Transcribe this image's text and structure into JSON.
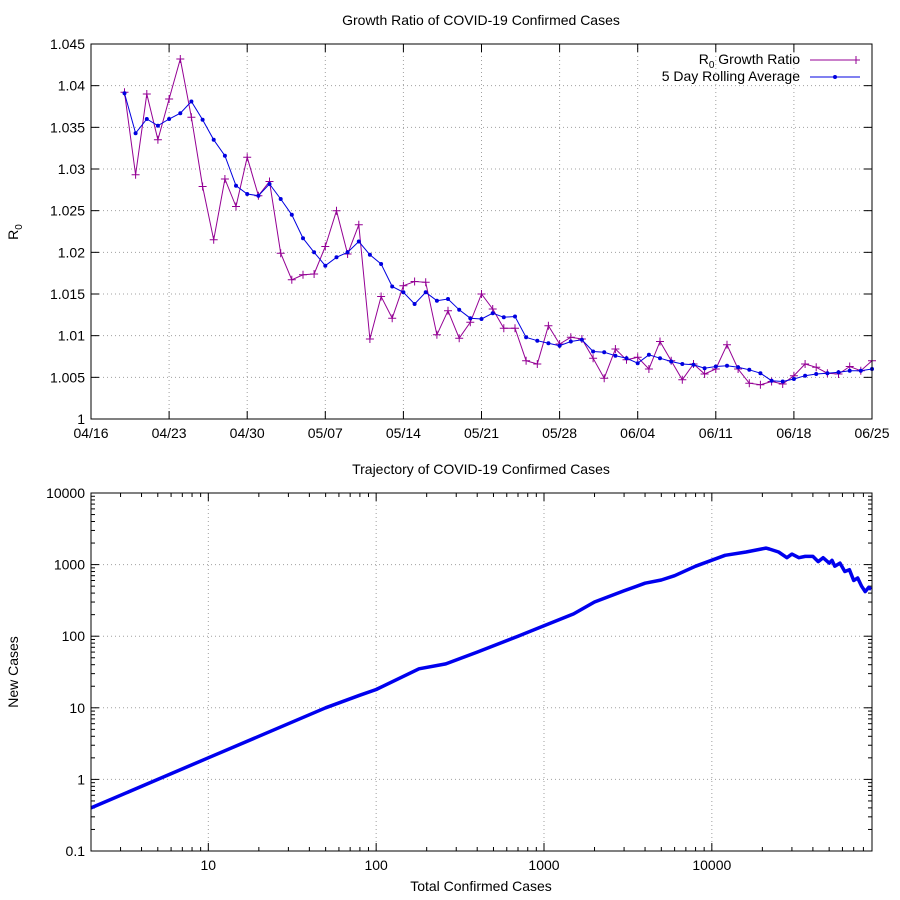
{
  "colors": {
    "ratio": "#940094",
    "average": "#0000e0",
    "trajectory": "#0000ee",
    "grid": "#a0a0a0"
  },
  "chart_data": [
    {
      "type": "line",
      "title": "Growth Ratio of COVID-19 Confirmed Cases",
      "xlabel": "",
      "ylabel_main": "R",
      "ylabel_sub": "0",
      "xlim": [
        "2020-04-16",
        "2020-06-25"
      ],
      "ylim": [
        1.0,
        1.045
      ],
      "grid": true,
      "legend": "top-right",
      "x_tick_labels": [
        "04/16",
        "04/23",
        "04/30",
        "05/07",
        "05/14",
        "05/21",
        "05/28",
        "06/04",
        "06/11",
        "06/18",
        "06/25"
      ],
      "y_tick_labels": [
        "1",
        "1.005",
        "1.01",
        "1.015",
        "1.02",
        "1.025",
        "1.03",
        "1.035",
        "1.04",
        "1.045"
      ],
      "start_date": "2020-04-19",
      "series": [
        {
          "name_main": "R",
          "name_sub": "0",
          "name_rest": " Growth Ratio",
          "marker": "plus",
          "values": [
            1.0392,
            1.0293,
            1.039,
            1.0335,
            1.0384,
            1.0432,
            1.0362,
            1.0279,
            1.0215,
            1.0288,
            1.0255,
            1.0314,
            1.0268,
            1.0285,
            1.0199,
            1.0167,
            1.0173,
            1.0174,
            1.0207,
            1.025,
            1.0198,
            1.0233,
            1.0096,
            1.0147,
            1.0121,
            1.016,
            1.0165,
            1.0164,
            1.0101,
            1.013,
            1.0097,
            1.0116,
            1.015,
            1.0132,
            1.0109,
            1.0109,
            1.007,
            1.0066,
            1.0112,
            1.009,
            1.0098,
            1.0096,
            1.0073,
            1.0049,
            1.0084,
            1.0071,
            1.0074,
            1.006,
            1.0093,
            1.007,
            1.0047,
            1.0066,
            1.0054,
            1.006,
            1.0089,
            1.006,
            1.0043,
            1.0041,
            1.0045,
            1.0042,
            1.0052,
            1.0066,
            1.0062,
            1.0055,
            1.0054,
            1.0063,
            1.0058,
            1.007
          ]
        },
        {
          "name": "5 Day Rolling Average",
          "marker": "dot",
          "values": [
            1.0391,
            1.0343,
            1.036,
            1.0352,
            1.036,
            1.0367,
            1.0381,
            1.0359,
            1.0335,
            1.0316,
            1.028,
            1.027,
            1.0268,
            1.0282,
            1.0264,
            1.0245,
            1.0217,
            1.02,
            1.0184,
            1.0194,
            1.02,
            1.0213,
            1.0197,
            1.0186,
            1.0159,
            1.0152,
            1.0138,
            1.0152,
            1.0142,
            1.0144,
            1.0131,
            1.0121,
            1.012,
            1.0127,
            1.0122,
            1.0123,
            1.0098,
            1.0094,
            1.0091,
            1.0088,
            1.0093,
            1.0095,
            1.0081,
            1.008,
            1.0076,
            1.0073,
            1.0067,
            1.0077,
            1.0073,
            1.0069,
            1.0066,
            1.0065,
            1.0061,
            1.0063,
            1.0064,
            1.0062,
            1.0059,
            1.0055,
            1.0046,
            1.0045,
            1.0048,
            1.0052,
            1.0054,
            1.0055,
            1.0056,
            1.0058,
            1.0058,
            1.006
          ]
        }
      ]
    },
    {
      "type": "line",
      "title": "Trajectory of COVID-19 Confirmed Cases",
      "xlabel": "Total Confirmed Cases",
      "ylabel": "New Cases",
      "x_scale": "log",
      "y_scale": "log",
      "xlim": [
        2,
        90000
      ],
      "ylim": [
        0.1,
        10000
      ],
      "grid": true,
      "x_tick_labels": [
        "10",
        "100",
        "1000",
        "10000"
      ],
      "x_tick_values": [
        10,
        100,
        1000,
        10000
      ],
      "y_tick_labels": [
        "0.1",
        "1",
        "10",
        "100",
        "1000",
        "10000"
      ],
      "y_tick_values": [
        0.1,
        1,
        10,
        100,
        1000,
        10000
      ],
      "series": [
        {
          "name": "",
          "x": [
            2,
            5,
            10,
            20,
            50,
            80,
            100,
            180,
            260,
            400,
            700,
            1000,
            1500,
            2000,
            3000,
            4000,
            5000,
            6000,
            8000,
            12000,
            16000,
            21000,
            22000,
            25000,
            28000,
            30000,
            33000,
            36000,
            40000,
            43000,
            46000,
            50000,
            52000,
            54000,
            58000,
            62000,
            66000,
            70000,
            74000,
            78000,
            82000,
            86000,
            89000
          ],
          "y": [
            0.4,
            1.0,
            2.0,
            4.0,
            10,
            15,
            18,
            35,
            41,
            60,
            100,
            140,
            205,
            300,
            430,
            550,
            610,
            700,
            950,
            1350,
            1500,
            1700,
            1650,
            1500,
            1250,
            1400,
            1250,
            1300,
            1300,
            1100,
            1250,
            1050,
            1150,
            950,
            1050,
            800,
            850,
            600,
            650,
            500,
            420,
            480,
            450
          ]
        }
      ]
    }
  ]
}
